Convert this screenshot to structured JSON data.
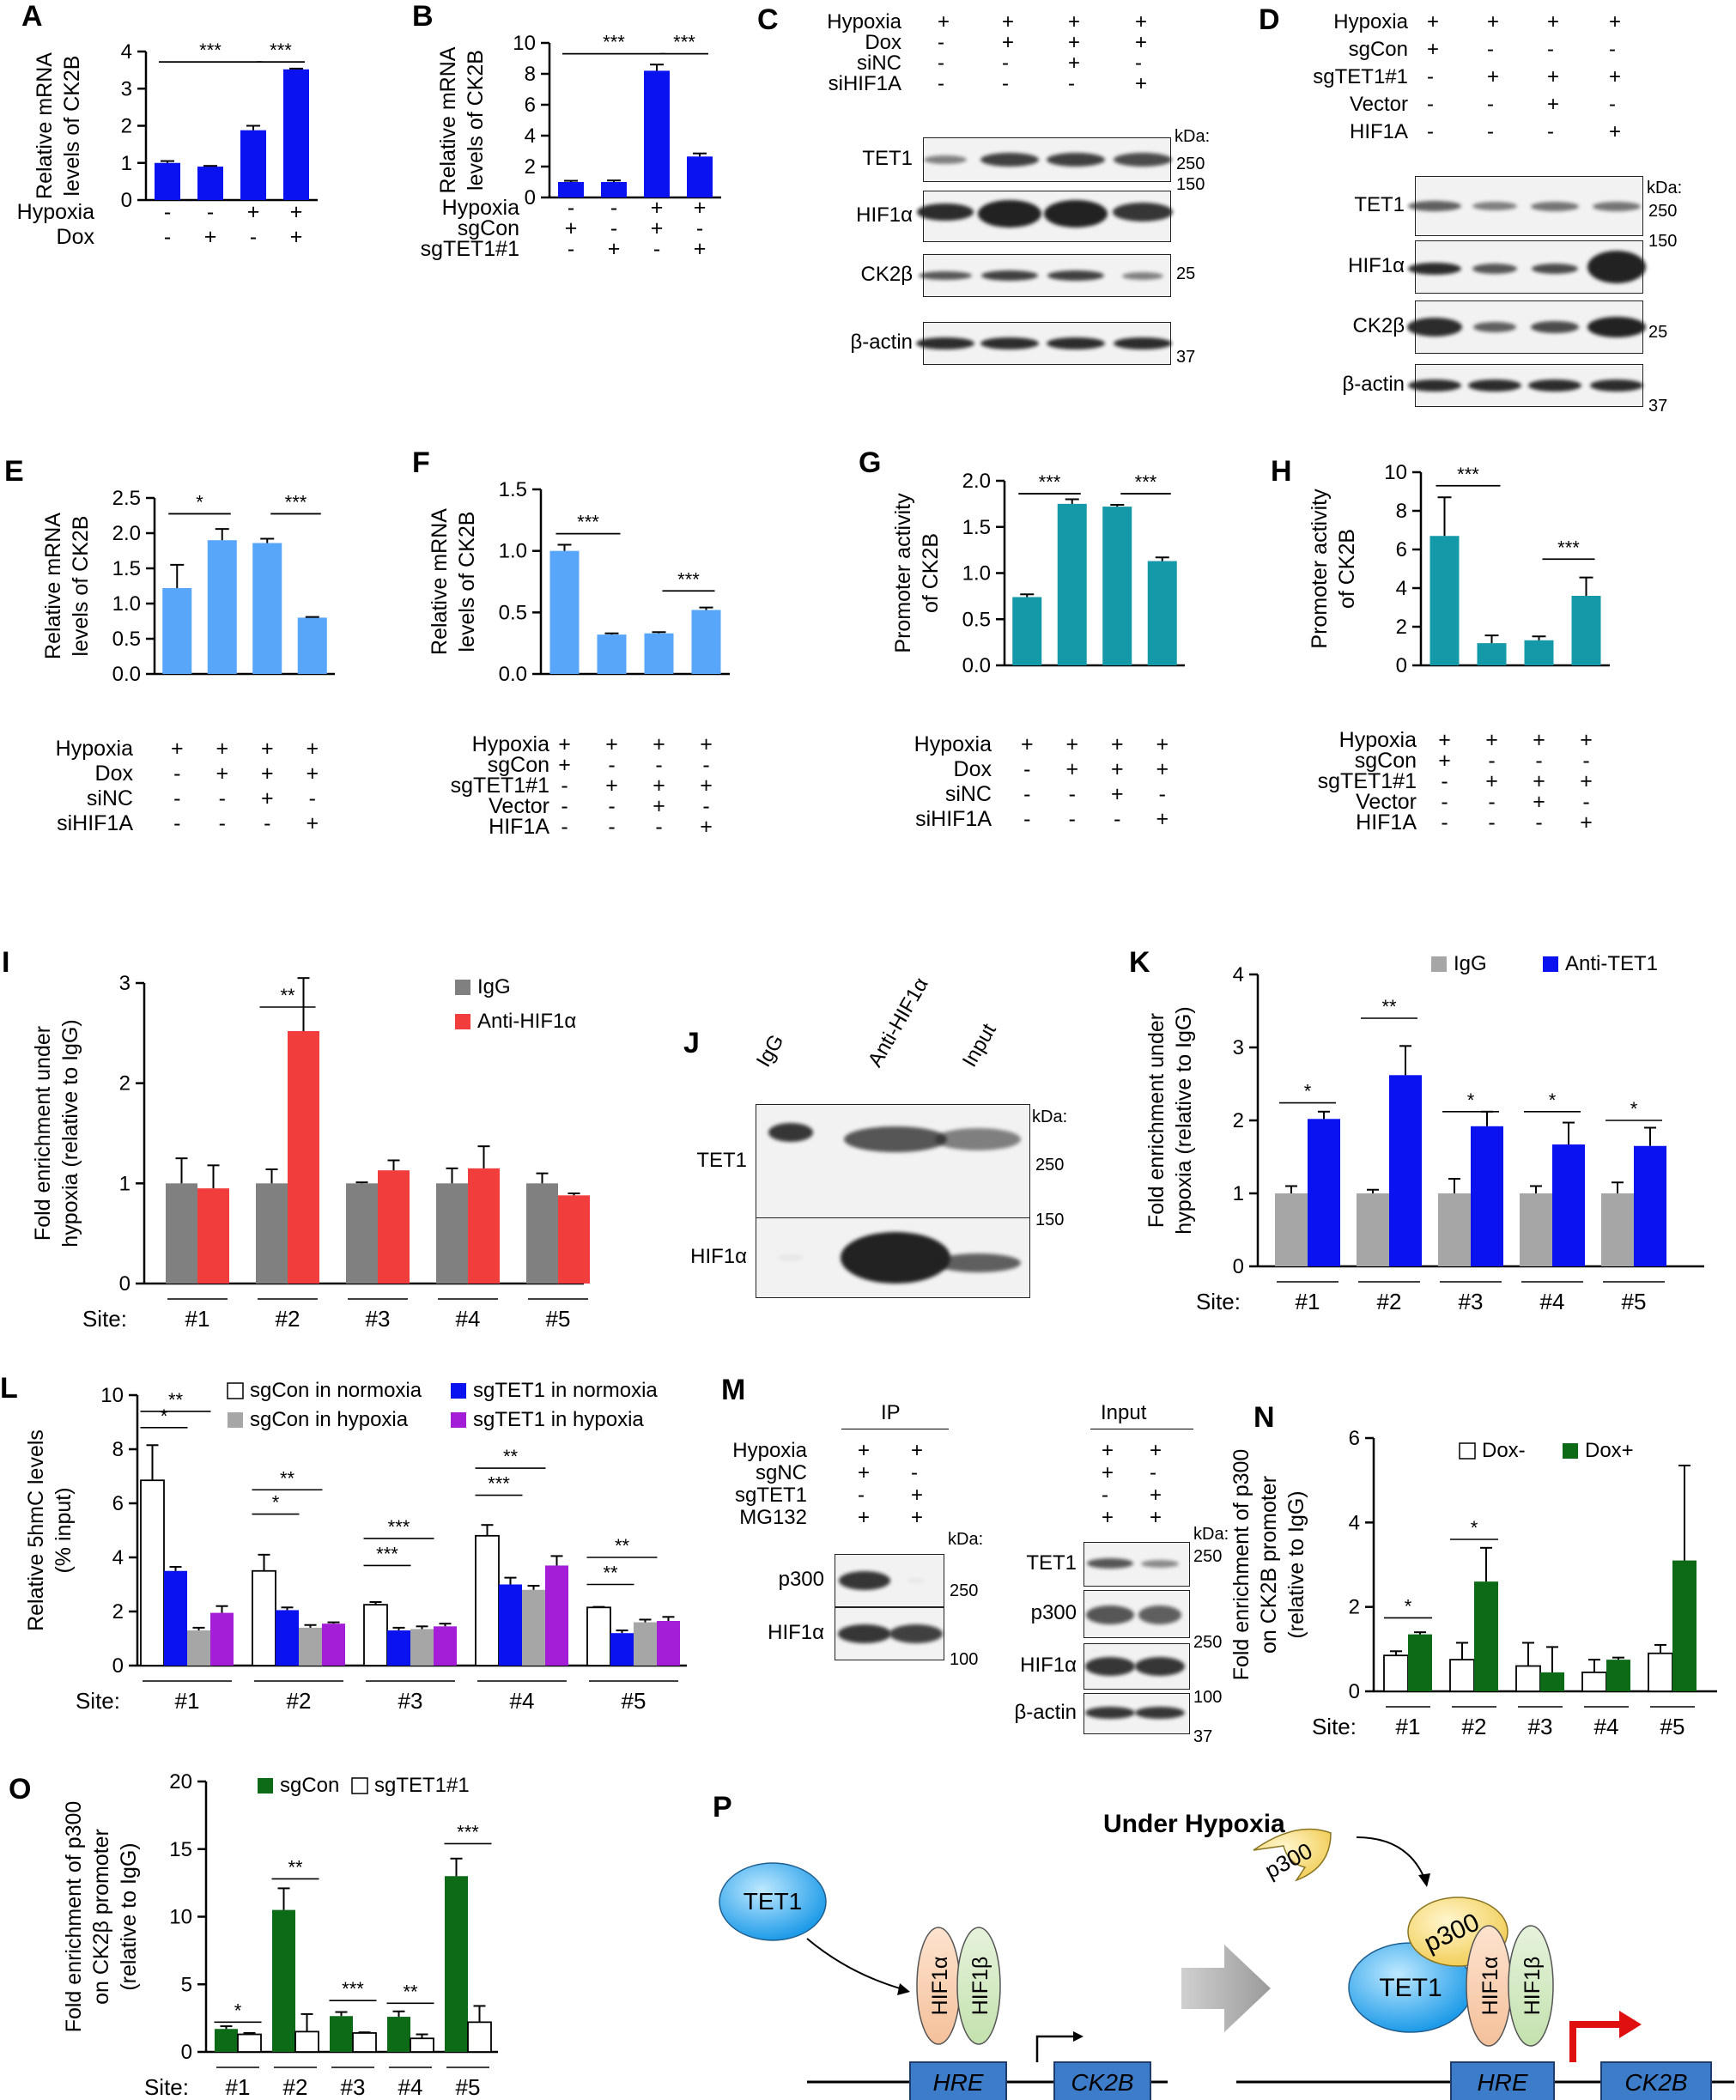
{
  "panels": {
    "A": {
      "label": "A",
      "ylabel": [
        "Relative mRNA",
        "levels of CK2B"
      ],
      "ylim": [
        0,
        4
      ],
      "ticks": [
        0,
        1,
        2,
        3,
        4
      ],
      "color": "#0a12f0",
      "values": [
        1.0,
        0.9,
        1.88,
        3.52
      ],
      "errors": [
        0.05,
        0.02,
        0.12,
        0.02
      ],
      "rows": [
        {
          "name": "Hypoxia",
          "signs": [
            "-",
            "-",
            "+",
            "+"
          ]
        },
        {
          "name": "Dox",
          "signs": [
            "-",
            "+",
            "-",
            "+"
          ]
        }
      ],
      "sig": [
        {
          "from": 0,
          "to": 2,
          "text": "***",
          "level": 0.93
        },
        {
          "from": 2,
          "to": 3,
          "text": "***",
          "level": 0.93
        }
      ]
    },
    "B": {
      "label": "B",
      "ylabel": [
        "Relative mRNA",
        "levels of CK2B"
      ],
      "ylim": [
        0,
        10
      ],
      "ticks": [
        0,
        2,
        4,
        6,
        8,
        10
      ],
      "color": "#0a12f0",
      "values": [
        1.0,
        1.0,
        8.2,
        2.65
      ],
      "errors": [
        0.08,
        0.1,
        0.4,
        0.2
      ],
      "rows": [
        {
          "name": "Hypoxia",
          "signs": [
            "-",
            "-",
            "+",
            "+"
          ]
        },
        {
          "name": "sgCon",
          "signs": [
            "+",
            "-",
            "+",
            "-"
          ]
        },
        {
          "name": "sgTET1#1",
          "signs": [
            "-",
            "+",
            "-",
            "+"
          ]
        }
      ],
      "sig": [
        {
          "from": 0,
          "to": 2,
          "text": "***",
          "level": 0.93
        },
        {
          "from": 2,
          "to": 3,
          "text": "***",
          "level": 0.93
        }
      ]
    },
    "E": {
      "label": "E",
      "ylabel": [
        "Relative mRNA",
        "levels of CK2B"
      ],
      "ylim": [
        0,
        2.5
      ],
      "ticks": [
        "0.0",
        "0.5",
        "1.0",
        "1.5",
        "2.0",
        "2.5"
      ],
      "color": "#57a6fa",
      "values": [
        1.22,
        1.9,
        1.86,
        0.8
      ],
      "errors": [
        0.33,
        0.16,
        0.06,
        0.01
      ],
      "rows": [
        {
          "name": "Hypoxia",
          "signs": [
            "+",
            "+",
            "+",
            "+"
          ]
        },
        {
          "name": "Dox",
          "signs": [
            "-",
            "+",
            "+",
            "+"
          ]
        },
        {
          "name": "siNC",
          "signs": [
            "-",
            "-",
            "+",
            "-"
          ]
        },
        {
          "name": "siHIF1A",
          "signs": [
            "-",
            "-",
            "-",
            "+"
          ]
        }
      ],
      "sig": [
        {
          "from": 0,
          "to": 1,
          "text": "*",
          "level": 0.91
        },
        {
          "from": 2,
          "to": 3,
          "text": "***",
          "level": 0.91
        }
      ]
    },
    "F": {
      "label": "F",
      "ylabel": [
        "Relative mRNA",
        "levels of CK2B"
      ],
      "ylim": [
        0,
        1.5
      ],
      "ticks": [
        "0.0",
        "0.5",
        "1.0",
        "1.5"
      ],
      "color": "#57a6fa",
      "values": [
        1.0,
        0.32,
        0.33,
        0.52
      ],
      "errors": [
        0.05,
        0.01,
        0.01,
        0.02
      ],
      "rows": [
        {
          "name": "Hypoxia",
          "signs": [
            "+",
            "+",
            "+",
            "+"
          ]
        },
        {
          "name": "sgCon",
          "signs": [
            "+",
            "-",
            "-",
            "-"
          ]
        },
        {
          "name": "sgTET1#1",
          "signs": [
            "-",
            "+",
            "+",
            "+"
          ]
        },
        {
          "name": "Vector",
          "signs": [
            "-",
            "-",
            "+",
            "-"
          ]
        },
        {
          "name": "HIF1A",
          "signs": [
            "-",
            "-",
            "-",
            "+"
          ]
        }
      ],
      "sig": [
        {
          "from": 0,
          "to": 1,
          "text": "***",
          "level": 0.76
        },
        {
          "from": 2,
          "to": 3,
          "text": "***",
          "level": 0.45
        }
      ]
    },
    "G": {
      "label": "G",
      "ylabel": [
        "Promoter activity",
        "of CK2B"
      ],
      "ylim": [
        0,
        2.0
      ],
      "ticks": [
        "0.0",
        "0.5",
        "1.0",
        "1.5",
        "2.0"
      ],
      "color": "#1499a8",
      "values": [
        0.74,
        1.75,
        1.72,
        1.13
      ],
      "errors": [
        0.03,
        0.05,
        0.02,
        0.04
      ],
      "rows": [
        {
          "name": "Hypoxia",
          "signs": [
            "+",
            "+",
            "+",
            "+"
          ]
        },
        {
          "name": "Dox",
          "signs": [
            "-",
            "+",
            "+",
            "+"
          ]
        },
        {
          "name": "siNC",
          "signs": [
            "-",
            "-",
            "+",
            "-"
          ]
        },
        {
          "name": "siHIF1A",
          "signs": [
            "-",
            "-",
            "-",
            "+"
          ]
        }
      ],
      "sig": [
        {
          "from": 0,
          "to": 1,
          "text": "***",
          "level": 0.93
        },
        {
          "from": 2,
          "to": 3,
          "text": "***",
          "level": 0.93
        }
      ]
    },
    "H": {
      "label": "H",
      "ylabel": [
        "Promoter activity",
        "of CK2B"
      ],
      "ylim": [
        0,
        10
      ],
      "ticks": [
        0,
        2,
        4,
        6,
        8,
        10
      ],
      "color": "#1499a8",
      "values": [
        6.7,
        1.15,
        1.3,
        3.6
      ],
      "errors": [
        2.0,
        0.4,
        0.2,
        0.95
      ],
      "rows": [
        {
          "name": "Hypoxia",
          "signs": [
            "+",
            "+",
            "+",
            "+"
          ]
        },
        {
          "name": "sgCon",
          "signs": [
            "+",
            "-",
            "-",
            "-"
          ]
        },
        {
          "name": "sgTET1#1",
          "signs": [
            "-",
            "+",
            "+",
            "+"
          ]
        },
        {
          "name": "Vector",
          "signs": [
            "-",
            "-",
            "+",
            "-"
          ]
        },
        {
          "name": "HIF1A",
          "signs": [
            "-",
            "-",
            "-",
            "+"
          ]
        }
      ],
      "sig": [
        {
          "from": 0,
          "to": 1,
          "text": "***",
          "level": 0.93
        },
        {
          "from": 2,
          "to": 3,
          "text": "***",
          "level": 0.55
        }
      ]
    },
    "I": {
      "label": "I",
      "ylabel": [
        "Fold enrichment under",
        "hypoxia (relative to IgG)"
      ],
      "ylim": [
        0,
        3
      ],
      "ticks": [
        0,
        1,
        2,
        3
      ],
      "series": [
        {
          "name": "IgG",
          "color": "#808080",
          "values": [
            1.0,
            1.0,
            1.0,
            1.0,
            1.0
          ],
          "errors": [
            0.25,
            0.14,
            0.01,
            0.15,
            0.1
          ]
        },
        {
          "name": "Anti-HIF1α",
          "color": "#f23d3d",
          "values": [
            0.95,
            2.52,
            1.13,
            1.15,
            0.88
          ],
          "errors": [
            0.23,
            0.53,
            0.1,
            0.22,
            0.02
          ]
        }
      ],
      "sites": [
        "#1",
        "#2",
        "#3",
        "#4",
        "#5"
      ],
      "site_label": "Site:",
      "sig": [
        {
          "site": 1,
          "text": "**",
          "level": 0.92
        }
      ]
    },
    "K": {
      "label": "K",
      "ylabel": [
        "Fold enrichment under",
        "hypoxia (relative to IgG)"
      ],
      "ylim": [
        0,
        4
      ],
      "ticks": [
        0,
        1,
        2,
        3,
        4
      ],
      "series": [
        {
          "name": "IgG",
          "color": "#a6a6a6",
          "values": [
            1.0,
            1.0,
            1.0,
            1.0,
            1.0
          ],
          "errors": [
            0.1,
            0.05,
            0.2,
            0.1,
            0.15
          ]
        },
        {
          "name": "Anti-TET1",
          "color": "#0a12f0",
          "values": [
            2.02,
            2.62,
            1.92,
            1.67,
            1.65
          ],
          "errors": [
            0.1,
            0.4,
            0.2,
            0.3,
            0.25
          ]
        }
      ],
      "sites": [
        "#1",
        "#2",
        "#3",
        "#4",
        "#5"
      ],
      "site_label": "Site:",
      "sig": [
        {
          "site": 0,
          "text": "*",
          "level": 0.56
        },
        {
          "site": 1,
          "text": "**",
          "level": 0.85
        },
        {
          "site": 2,
          "text": "*",
          "level": 0.53
        },
        {
          "site": 3,
          "text": "*",
          "level": 0.53
        },
        {
          "site": 4,
          "text": "*",
          "level": 0.5
        }
      ]
    },
    "L": {
      "label": "L",
      "ylabel": [
        "Relative 5hmC levels",
        "(% input)"
      ],
      "ylim": [
        0,
        10
      ],
      "ticks": [
        0,
        2,
        4,
        6,
        8,
        10
      ],
      "series": [
        {
          "name": "sgCon in normoxia",
          "color": "#ffffff",
          "values": [
            6.85,
            3.5,
            2.25,
            4.8,
            2.15
          ],
          "errors": [
            1.3,
            0.6,
            0.1,
            0.4,
            0.02
          ]
        },
        {
          "name": "sgTET1 in normoxia",
          "color": "#0a12f0",
          "values": [
            3.5,
            2.05,
            1.3,
            3.0,
            1.2
          ],
          "errors": [
            0.15,
            0.1,
            0.1,
            0.25,
            0.1
          ]
        },
        {
          "name": "sgCon in hypoxia",
          "color": "#a6a6a6",
          "values": [
            1.3,
            1.4,
            1.35,
            2.8,
            1.6
          ],
          "errors": [
            0.1,
            0.1,
            0.1,
            0.15,
            0.1
          ]
        },
        {
          "name": "sgTET1 in hypoxia",
          "color": "#a31ed6",
          "values": [
            1.95,
            1.55,
            1.45,
            3.7,
            1.65
          ],
          "errors": [
            0.25,
            0.05,
            0.1,
            0.35,
            0.15
          ]
        }
      ],
      "sites": [
        "#1",
        "#2",
        "#3",
        "#4",
        "#5"
      ],
      "site_label": "Site:",
      "sig": [
        {
          "site": 0,
          "a": 0,
          "b": 1,
          "text": "*",
          "level": 0.88
        },
        {
          "site": 0,
          "a": 0,
          "b": 2,
          "text": "**",
          "level": 0.94
        },
        {
          "site": 1,
          "a": 0,
          "b": 1,
          "text": "*",
          "level": 0.56
        },
        {
          "site": 1,
          "a": 0,
          "b": 2,
          "text": "**",
          "level": 0.65
        },
        {
          "site": 2,
          "a": 0,
          "b": 1,
          "text": "***",
          "level": 0.37
        },
        {
          "site": 2,
          "a": 0,
          "b": 2,
          "text": "***",
          "level": 0.47
        },
        {
          "site": 3,
          "a": 0,
          "b": 1,
          "text": "***",
          "level": 0.63
        },
        {
          "site": 3,
          "a": 0,
          "b": 2,
          "text": "**",
          "level": 0.73
        },
        {
          "site": 4,
          "a": 0,
          "b": 1,
          "text": "**",
          "level": 0.3
        },
        {
          "site": 4,
          "a": 0,
          "b": 2,
          "text": "**",
          "level": 0.4
        }
      ]
    },
    "N": {
      "label": "N",
      "ylabel": [
        "Fold enrichment of p300",
        "on CK2B promoter",
        "(relative to IgG)"
      ],
      "ylim": [
        0,
        6
      ],
      "ticks": [
        0,
        2,
        4,
        6
      ],
      "series": [
        {
          "name": "Dox-",
          "color": "#ffffff",
          "values": [
            0.85,
            0.75,
            0.6,
            0.45,
            0.9
          ],
          "errors": [
            0.1,
            0.4,
            0.55,
            0.3,
            0.2
          ]
        },
        {
          "name": "Dox+",
          "color": "#0d6b17",
          "values": [
            1.35,
            2.6,
            0.45,
            0.75,
            3.1
          ],
          "errors": [
            0.05,
            0.8,
            0.6,
            0.05,
            2.25
          ]
        }
      ],
      "sites": [
        "#1",
        "#2",
        "#3",
        "#4",
        "#5"
      ],
      "site_label": "Site:",
      "sig": [
        {
          "site": 0,
          "text": "*",
          "level": 0.29
        },
        {
          "site": 1,
          "text": "*",
          "level": 0.6
        }
      ]
    },
    "O": {
      "label": "O",
      "ylabel": [
        "Fold enrichment of p300",
        "on CK2β promoter",
        "(relative to IgG)"
      ],
      "ylim": [
        0,
        20
      ],
      "ticks": [
        0,
        5,
        10,
        15,
        20
      ],
      "series": [
        {
          "name": "sgCon",
          "color": "#0d6b17",
          "values": [
            1.7,
            10.5,
            2.65,
            2.6,
            13.0
          ],
          "errors": [
            0.2,
            1.6,
            0.3,
            0.4,
            1.3
          ]
        },
        {
          "name": "sgTET1#1",
          "color": "#ffffff",
          "values": [
            1.3,
            1.5,
            1.4,
            1.0,
            2.2
          ],
          "errors": [
            0.1,
            1.3,
            0.05,
            0.3,
            1.2
          ]
        }
      ],
      "sites": [
        "#1",
        "#2",
        "#3",
        "#4",
        "#5"
      ],
      "site_label": "Site:",
      "sig": [
        {
          "site": 0,
          "text": "*",
          "level": 0.11
        },
        {
          "site": 1,
          "text": "**",
          "level": 0.64
        },
        {
          "site": 2,
          "text": "***",
          "level": 0.19
        },
        {
          "site": 3,
          "text": "**",
          "level": 0.18
        },
        {
          "site": 4,
          "text": "***",
          "level": 0.77
        }
      ]
    }
  },
  "blotC": {
    "label": "C",
    "rows": [
      {
        "name": "Hypoxia",
        "signs": [
          "+",
          "+",
          "+",
          "+"
        ]
      },
      {
        "name": "Dox",
        "signs": [
          "-",
          "+",
          "+",
          "+"
        ]
      },
      {
        "name": "siNC",
        "signs": [
          "-",
          "-",
          "+",
          "-"
        ]
      },
      {
        "name": "siHIF1A",
        "signs": [
          "-",
          "-",
          "-",
          "+"
        ]
      }
    ],
    "kda": "kDa:",
    "blots": [
      "TET1",
      "HIF1α",
      "CK2β",
      "β-actin"
    ],
    "markers": [
      "250",
      "150",
      "25",
      "37"
    ]
  },
  "blotD": {
    "label": "D",
    "rows": [
      {
        "name": "Hypoxia",
        "signs": [
          "+",
          "+",
          "+",
          "+"
        ]
      },
      {
        "name": "sgCon",
        "signs": [
          "+",
          "-",
          "-",
          "-"
        ]
      },
      {
        "name": "sgTET1#1",
        "signs": [
          "-",
          "+",
          "+",
          "+"
        ]
      },
      {
        "name": "Vector",
        "signs": [
          "-",
          "-",
          "+",
          "-"
        ]
      },
      {
        "name": "HIF1A",
        "signs": [
          "-",
          "-",
          "-",
          "+"
        ]
      }
    ],
    "kda": "kDa:",
    "blots": [
      "TET1",
      "HIF1α",
      "CK2β",
      "β-actin"
    ],
    "markers": [
      "250",
      "150",
      "25",
      "37"
    ]
  },
  "blotJ": {
    "label": "J",
    "lanes": [
      "IgG",
      "Anti-HIF1α",
      "Input"
    ],
    "kda": "kDa:",
    "blots": [
      "TET1",
      "HIF1α"
    ],
    "markers": [
      "250",
      "150"
    ]
  },
  "blotM": {
    "label": "M",
    "ip": "IP",
    "input": "Input",
    "rows": [
      {
        "name": "Hypoxia",
        "signs": [
          "+",
          "+"
        ]
      },
      {
        "name": "sgNC",
        "signs": [
          "+",
          "-"
        ]
      },
      {
        "name": "sgTET1",
        "signs": [
          "-",
          "+"
        ]
      },
      {
        "name": "MG132",
        "signs": [
          "+",
          "+"
        ]
      }
    ],
    "input_rows": [
      [
        "+",
        "+"
      ],
      [
        "+",
        "-"
      ],
      [
        "-",
        "+"
      ],
      [
        "+",
        "+"
      ]
    ],
    "kda": "kDa:",
    "ip_blots": [
      "p300",
      "HIF1α"
    ],
    "ip_markers": [
      "250",
      "100"
    ],
    "input_blots": [
      "TET1",
      "p300",
      "HIF1α",
      "β-actin"
    ],
    "input_markers": [
      "250",
      "250",
      "100",
      "37"
    ]
  },
  "diagramP": {
    "label": "P",
    "title": "Under Hypoxia",
    "tet1": "TET1",
    "p300": "p300",
    "hif1a": "HIF1α",
    "hif1b": "HIF1β",
    "hre": "HRE",
    "ck2b": "CK2B"
  }
}
